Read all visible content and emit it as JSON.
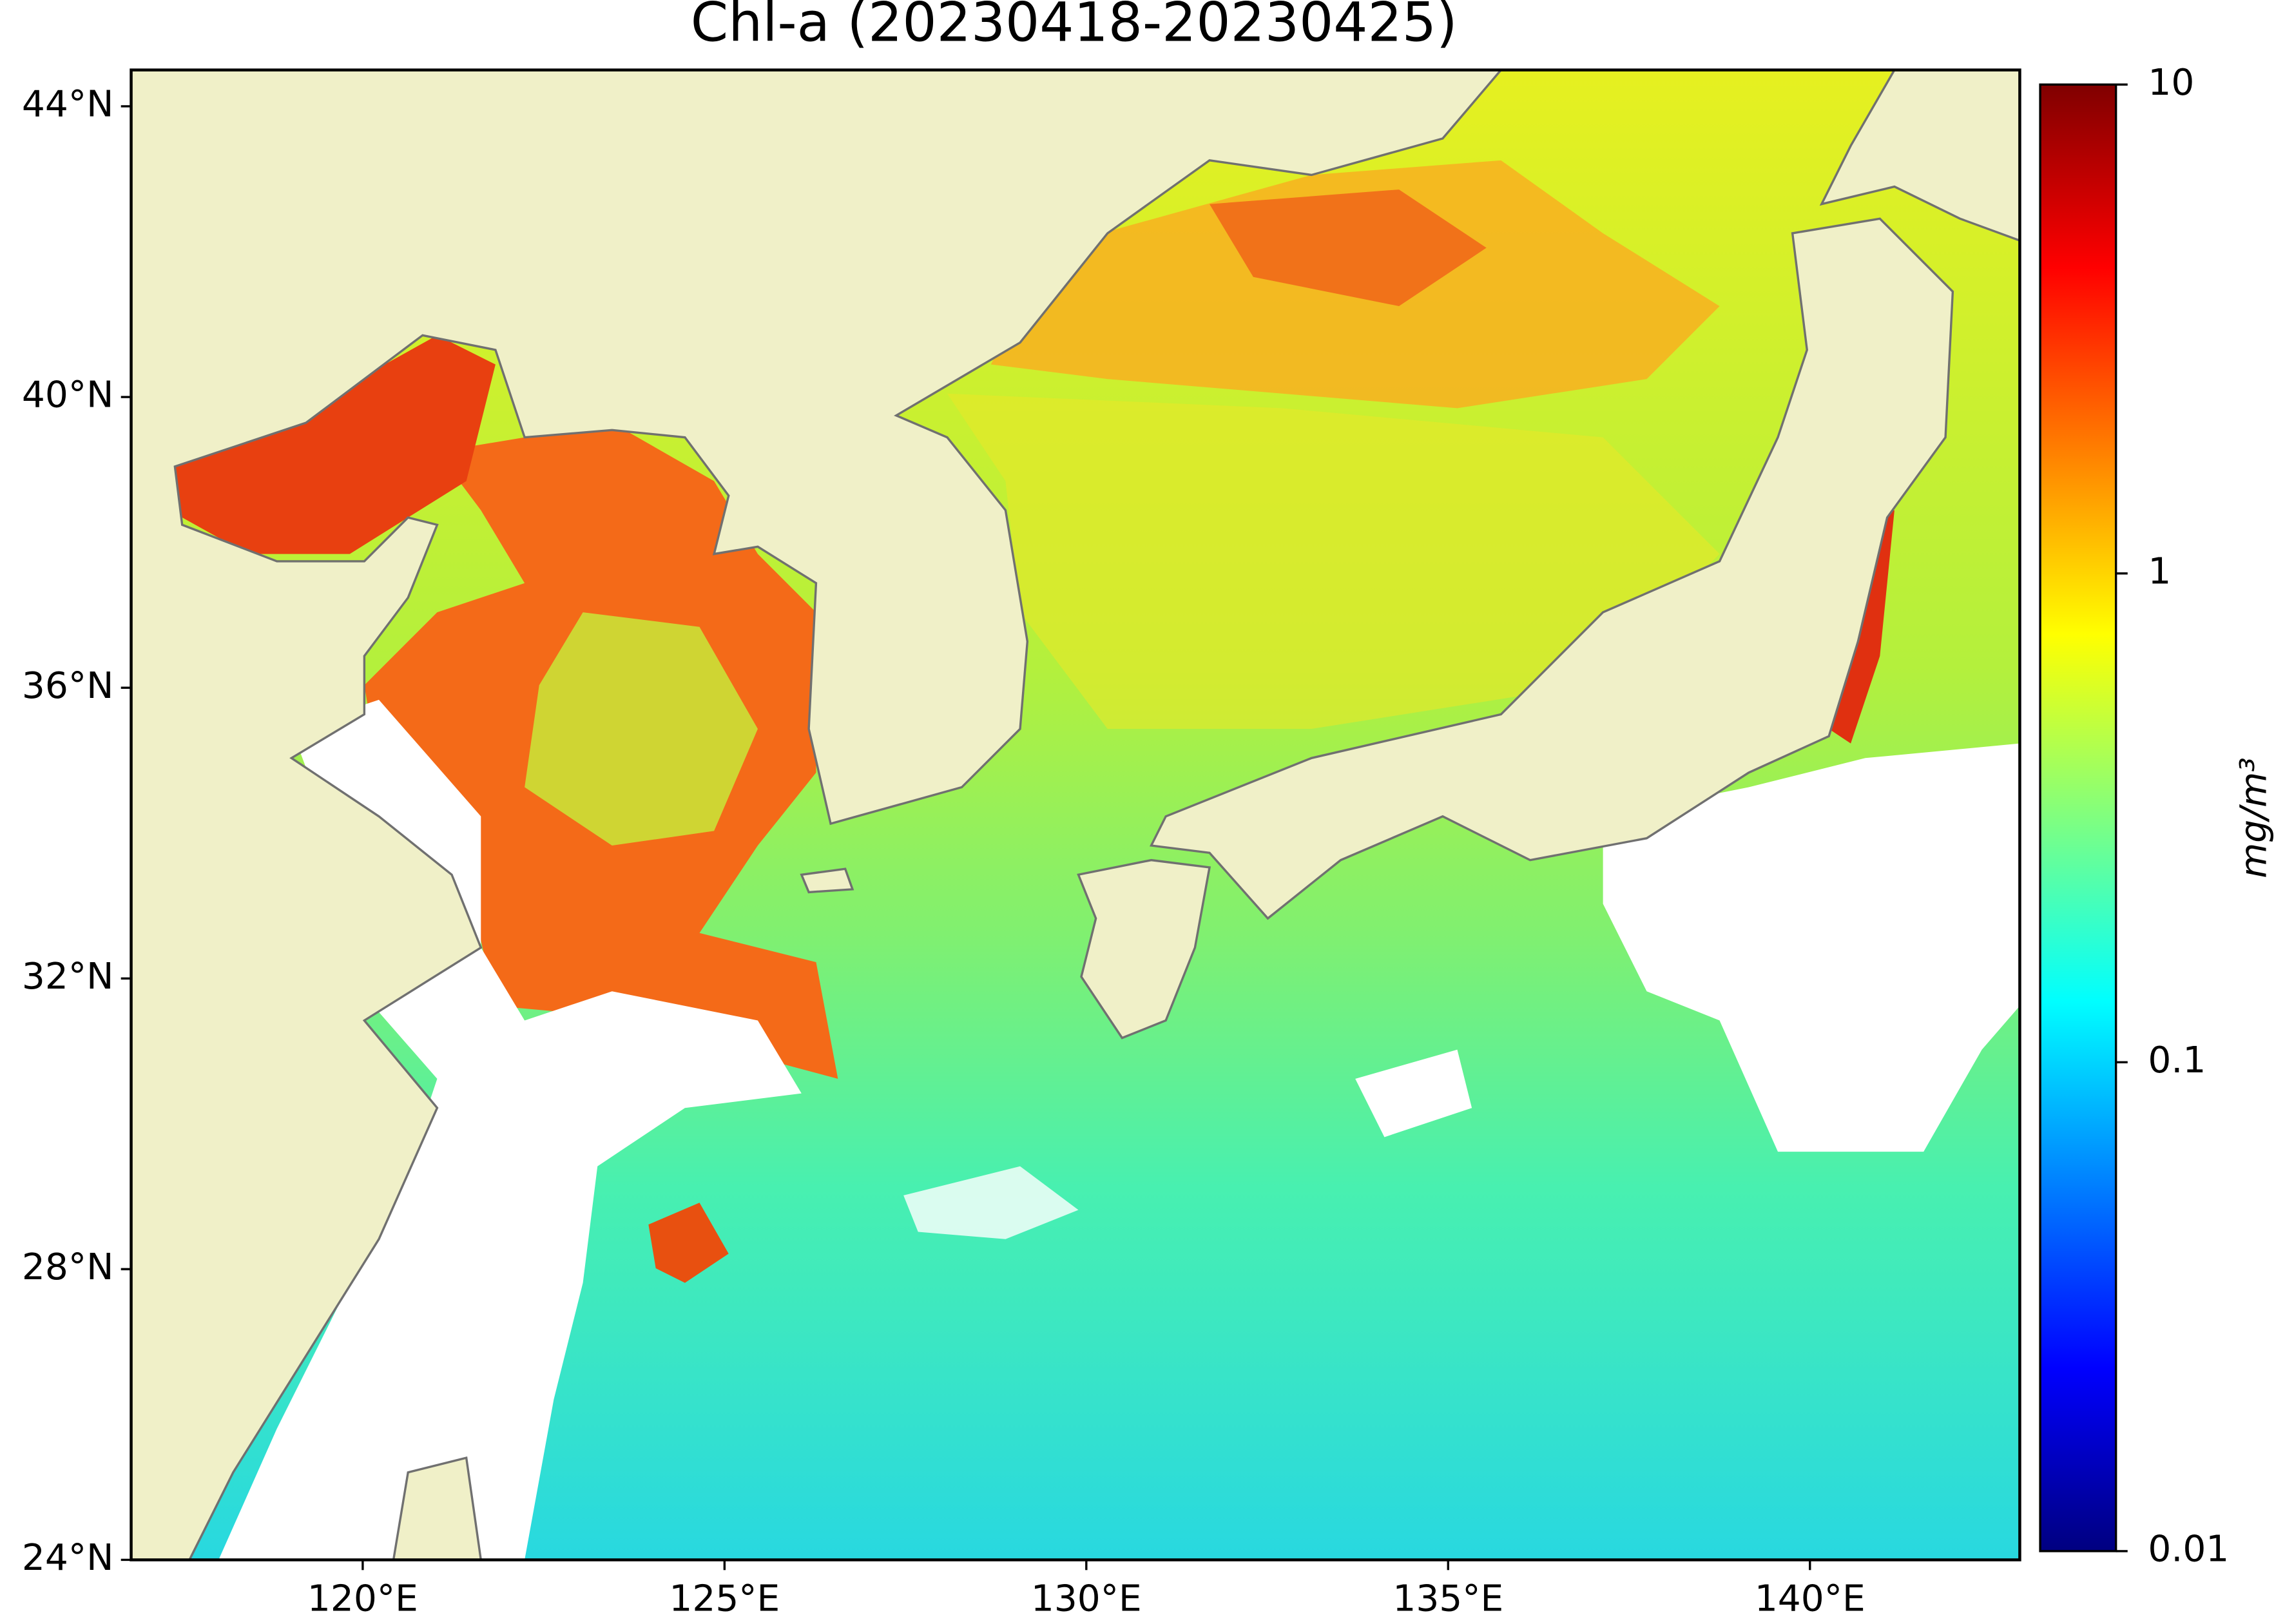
{
  "title": "Chl-a (20230418-20230425)",
  "map": {
    "xlim": [
      116.8,
      142.9
    ],
    "ylim": [
      24,
      44.5
    ],
    "xticks": [
      {
        "value": 120,
        "label": "120°E"
      },
      {
        "value": 125,
        "label": "125°E"
      },
      {
        "value": 130,
        "label": "130°E"
      },
      {
        "value": 135,
        "label": "135°E"
      },
      {
        "value": 140,
        "label": "140°E"
      }
    ],
    "yticks": [
      {
        "value": 24,
        "label": "24°N"
      },
      {
        "value": 28,
        "label": "28°N"
      },
      {
        "value": 32,
        "label": "32°N"
      },
      {
        "value": 36,
        "label": "36°N"
      },
      {
        "value": 40,
        "label": "40°N"
      },
      {
        "value": 44,
        "label": "44°N"
      }
    ]
  },
  "colorbar": {
    "label": "mg/m³",
    "scale": "log",
    "lim": [
      0.01,
      10
    ],
    "ticks": [
      0.01,
      0.1,
      1,
      10
    ]
  }
}
